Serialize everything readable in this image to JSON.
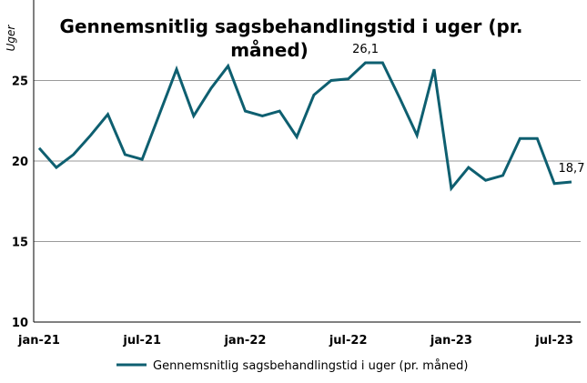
{
  "chart_data": {
    "type": "line",
    "title_line1": "Gennemsnitlig sagsbehandlingstid i uger (pr.",
    "title_line2": "måned)",
    "ylabel": "Uger",
    "xlabel": "",
    "ylim": [
      10,
      30
    ],
    "yticks": [
      10,
      15,
      20,
      25
    ],
    "grid": true,
    "legend_position": "bottom",
    "line_color": "#0e5f70",
    "x": [
      "jan-21",
      "feb-21",
      "mar-21",
      "apr-21",
      "maj-21",
      "jun-21",
      "jul-21",
      "aug-21",
      "sep-21",
      "okt-21",
      "nov-21",
      "dec-21",
      "jan-22",
      "feb-22",
      "mar-22",
      "apr-22",
      "maj-22",
      "jun-22",
      "jul-22",
      "aug-22",
      "sep-22",
      "okt-22",
      "nov-22",
      "dec-22",
      "jan-23",
      "feb-23",
      "mar-23",
      "apr-23",
      "maj-23",
      "jun-23",
      "jul-23",
      "aug-23"
    ],
    "xtick_labels": [
      {
        "index": 0,
        "label": "jan-21"
      },
      {
        "index": 6,
        "label": "jul-21"
      },
      {
        "index": 12,
        "label": "jan-22"
      },
      {
        "index": 18,
        "label": "jul-22"
      },
      {
        "index": 24,
        "label": "jan-23"
      },
      {
        "index": 30,
        "label": "jul-23"
      }
    ],
    "series": [
      {
        "name": "Gennemsnitlig sagsbehandlingstid i uger (pr. måned)",
        "values": [
          20.8,
          19.6,
          20.4,
          21.6,
          22.9,
          20.4,
          20.1,
          22.9,
          25.7,
          22.8,
          24.5,
          25.9,
          23.1,
          22.8,
          23.1,
          21.5,
          24.1,
          25.0,
          25.1,
          26.1,
          26.1,
          23.9,
          21.6,
          25.7,
          18.3,
          19.6,
          18.8,
          19.1,
          21.4,
          21.4,
          18.6,
          18.7
        ]
      }
    ],
    "data_labels": [
      {
        "index": 19,
        "text": "26,1"
      },
      {
        "index": 31,
        "text": "18,7"
      }
    ]
  }
}
